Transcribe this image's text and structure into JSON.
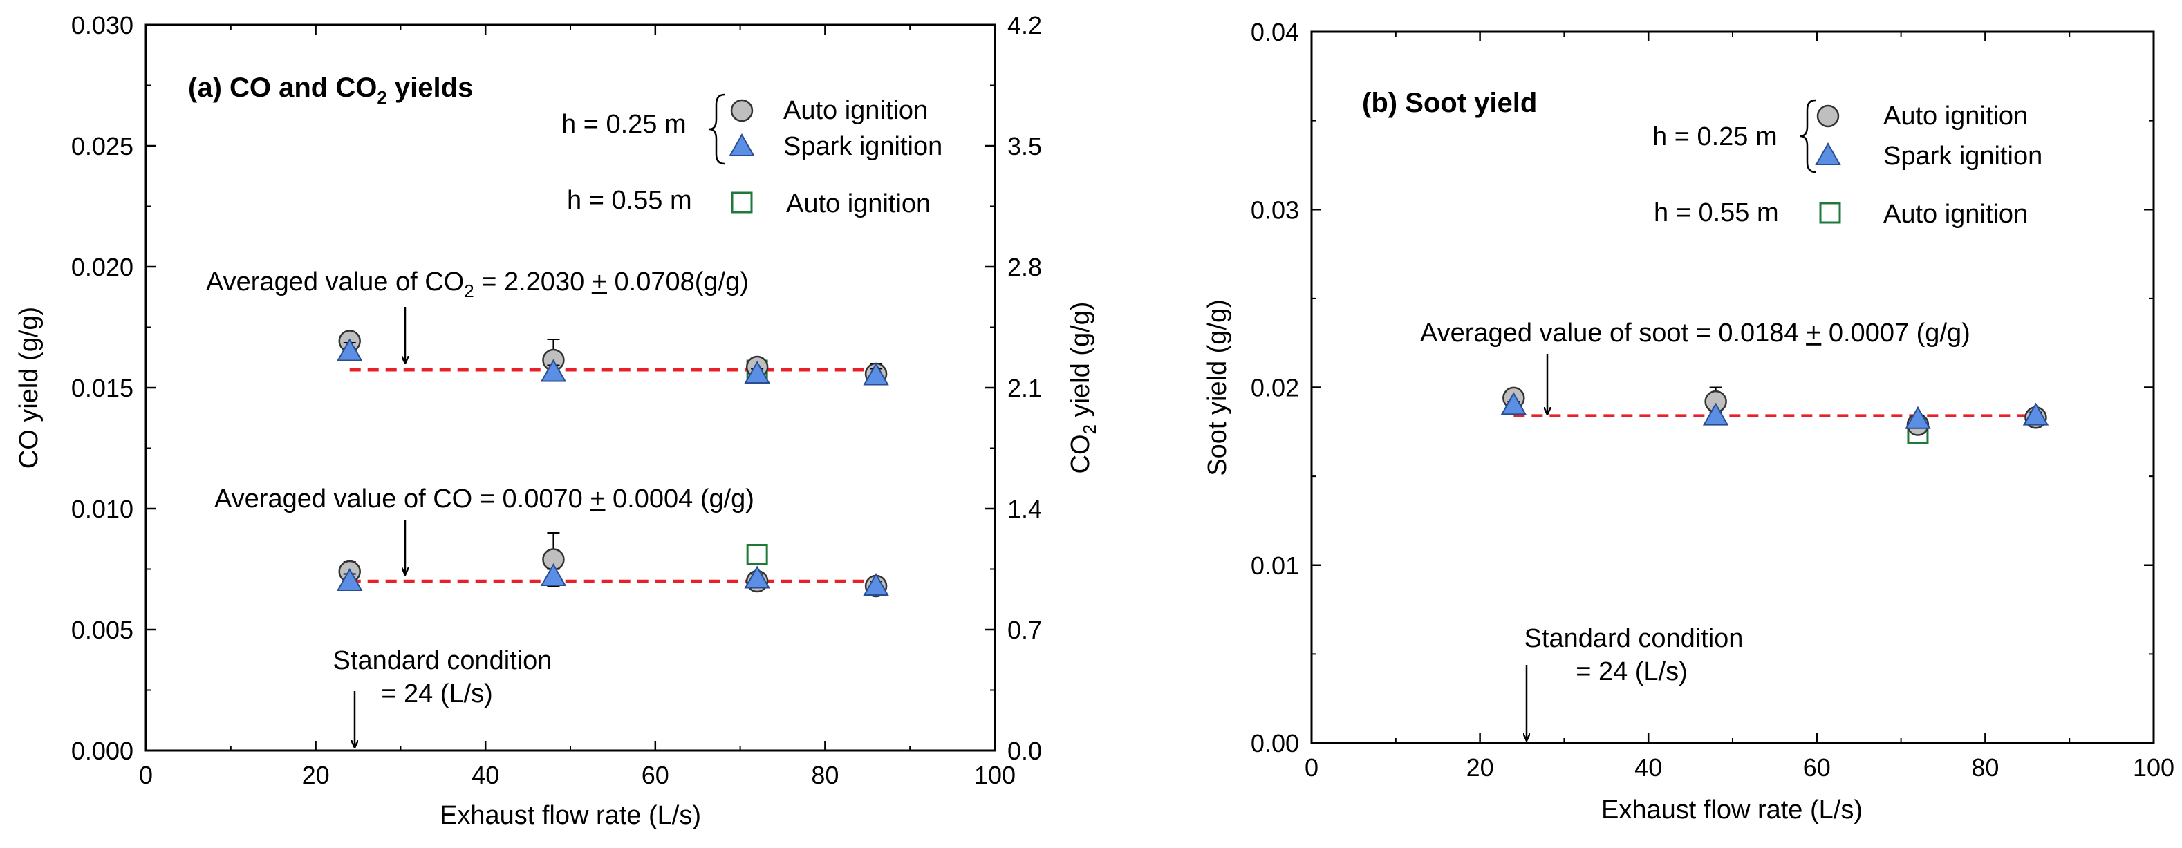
{
  "colors": {
    "circle_fill": "#bfbfbf",
    "triangle_fill": "#5b8fe6",
    "square_stroke": "#1f7a3a",
    "avg_line": "#e8202a",
    "axis": "#000000"
  },
  "chart_data": [
    {
      "type": "scatter",
      "id": "a",
      "title_main": "(a) CO and CO",
      "title_sub": "2",
      "title_tail": " yields",
      "xlabel": "Exhaust flow rate (L/s)",
      "ylabel": "CO yield (g/g)",
      "y2label_main": "CO",
      "y2label_sub": "2",
      "y2label_tail": " yield (g/g)",
      "xlim": [
        0,
        100
      ],
      "ylim": [
        0,
        0.03
      ],
      "y2lim": [
        0,
        4.2
      ],
      "x_ticks": [
        0,
        20,
        40,
        60,
        80,
        100
      ],
      "x_tick_labels": [
        "0",
        "20",
        "40",
        "60",
        "80",
        "100"
      ],
      "y_ticks": [
        0,
        0.005,
        0.01,
        0.015,
        0.02,
        0.025,
        0.03
      ],
      "y_tick_labels": [
        "0.000",
        "0.005",
        "0.010",
        "0.015",
        "0.020",
        "0.025",
        "0.030"
      ],
      "y2_ticks": [
        0,
        0.7,
        1.4,
        2.1,
        2.8,
        3.5,
        4.2
      ],
      "y2_tick_labels": [
        "0.0",
        "0.7",
        "1.4",
        "2.1",
        "2.8",
        "3.5",
        "4.2"
      ],
      "series": [
        {
          "name": "CO2, h = 0.25 m, Auto ignition",
          "marker": "circle",
          "axis": "y2",
          "x": [
            24,
            48,
            72,
            86
          ],
          "values": [
            2.37,
            2.26,
            2.22,
            2.18
          ],
          "err": [
            0.04,
            0.12,
            0.03,
            0.06
          ]
        },
        {
          "name": "CO2, h = 0.25 m, Spark ignition",
          "marker": "triangle",
          "axis": "y2",
          "x": [
            24,
            48,
            72,
            86
          ],
          "values": [
            2.31,
            2.19,
            2.18,
            2.17
          ],
          "err": [
            0.05,
            0.04,
            0.03,
            0.04
          ]
        },
        {
          "name": "CO2, h = 0.55 m, Auto ignition",
          "marker": "square",
          "axis": "y2",
          "x": [
            72
          ],
          "values": [
            2.2
          ],
          "err": [
            0
          ]
        },
        {
          "name": "CO, h = 0.25 m, Auto ignition",
          "marker": "circle",
          "axis": "y",
          "x": [
            24,
            48,
            72,
            86
          ],
          "values": [
            0.0074,
            0.0079,
            0.007,
            0.0068
          ],
          "err": [
            0.0004,
            0.0011,
            0.0002,
            0.0002
          ]
        },
        {
          "name": "CO, h = 0.25 m, Spark ignition",
          "marker": "triangle",
          "axis": "y",
          "x": [
            24,
            48,
            72,
            86
          ],
          "values": [
            0.007,
            0.0072,
            0.0071,
            0.0068
          ],
          "err": [
            0.0003,
            0.0003,
            0.0002,
            0.0002
          ]
        },
        {
          "name": "CO, h = 0.55 m, Auto ignition",
          "marker": "square",
          "axis": "y",
          "x": [
            72
          ],
          "values": [
            0.0081
          ],
          "err": [
            0
          ]
        }
      ],
      "avg_lines": [
        {
          "name": "CO2 average",
          "axis": "y2",
          "value": 2.203,
          "x_range": [
            24,
            86
          ]
        },
        {
          "name": "CO average",
          "axis": "y",
          "value": 0.007,
          "x_range": [
            24,
            86
          ]
        }
      ],
      "legend": {
        "group1_label": "h = 0.25 m",
        "group2_label": "h = 0.55 m",
        "auto": "Auto ignition",
        "spark": "Spark ignition",
        "auto2": "Auto ignition"
      },
      "annotations": {
        "co2_avg_pre": "Averaged value of CO",
        "co2_avg_sub": "2",
        "co2_avg_eq": " = 2.2030 ",
        "co2_avg_pm": "+",
        "co2_avg_post": " 0.0708(g/g)",
        "co_avg_pre": "Averaged value of CO = 0.0070 ",
        "co_avg_pm": "+",
        "co_avg_post": " 0.0004 (g/g)",
        "std_line1": "Standard condition",
        "std_line2": "= 24 (L/s)"
      }
    },
    {
      "type": "scatter",
      "id": "b",
      "title": "(b) Soot yield",
      "xlabel": "Exhaust flow rate (L/s)",
      "ylabel": "Soot yield (g/g)",
      "xlim": [
        0,
        100
      ],
      "ylim": [
        0,
        0.04
      ],
      "x_ticks": [
        0,
        20,
        40,
        60,
        80,
        100
      ],
      "x_tick_labels": [
        "0",
        "20",
        "40",
        "60",
        "80",
        "100"
      ],
      "y_ticks": [
        0,
        0.01,
        0.02,
        0.03,
        0.04
      ],
      "y_tick_labels": [
        "0.00",
        "0.01",
        "0.02",
        "0.03",
        "0.04"
      ],
      "series": [
        {
          "name": "Soot, h = 0.25 m, Auto ignition",
          "marker": "circle",
          "axis": "y",
          "x": [
            24,
            48,
            72,
            86
          ],
          "values": [
            0.0194,
            0.0192,
            0.0179,
            0.0183
          ],
          "err": [
            0.0003,
            0.0008,
            0.0002,
            0.0002
          ]
        },
        {
          "name": "Soot, h = 0.25 m, Spark ignition",
          "marker": "triangle",
          "axis": "y",
          "x": [
            24,
            48,
            72,
            86
          ],
          "values": [
            0.019,
            0.0184,
            0.0182,
            0.0184
          ],
          "err": [
            0.0002,
            0.0002,
            0.0002,
            0.0002
          ]
        },
        {
          "name": "Soot, h = 0.55 m, Auto ignition",
          "marker": "square",
          "axis": "y",
          "x": [
            72
          ],
          "values": [
            0.0174
          ],
          "err": [
            0
          ]
        }
      ],
      "avg_lines": [
        {
          "name": "Soot average",
          "axis": "y",
          "value": 0.0184,
          "x_range": [
            24,
            86
          ]
        }
      ],
      "legend": {
        "group1_label": "h = 0.25 m",
        "group2_label": "h = 0.55 m",
        "auto": "Auto ignition",
        "spark": "Spark ignition",
        "auto2": "Auto ignition"
      },
      "annotations": {
        "soot_avg_pre": "Averaged value of soot = 0.0184 ",
        "soot_avg_pm": "+",
        "soot_avg_post": " 0.0007 (g/g)",
        "std_line1": "Standard condition",
        "std_line2": "= 24 (L/s)"
      }
    }
  ]
}
